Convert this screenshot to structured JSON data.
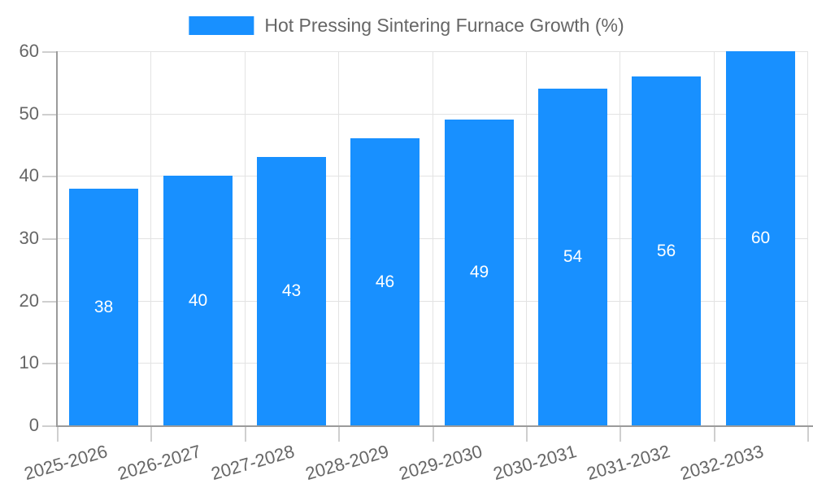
{
  "legend": {
    "label": "Hot Pressing Sintering Furnace Growth (%)"
  },
  "colors": {
    "bar": "#1890FF",
    "grid": "#E3E3E3",
    "axis": "#9B9B9B",
    "tick": "#CFCFCF",
    "text": "#666666",
    "value_label": "#FFFFFF",
    "background": "#FFFFFF"
  },
  "chart_data": {
    "type": "bar",
    "title": "Hot Pressing Sintering Furnace Growth (%)",
    "categories": [
      "2025-2026",
      "2026-2027",
      "2027-2028",
      "2028-2029",
      "2029-2030",
      "2030-2031",
      "2031-2032",
      "2032-2033"
    ],
    "values": [
      38,
      40,
      43,
      46,
      49,
      54,
      56,
      60
    ],
    "value_labels_shown": true,
    "value_label_position": "center-of-bar",
    "xlabel": "",
    "ylabel": "",
    "ylim": [
      0,
      60
    ],
    "yticks": [
      0,
      10,
      20,
      30,
      40,
      50,
      60
    ],
    "grid": true,
    "legend_position": "top-center",
    "x_label_rotation_deg": -16
  }
}
